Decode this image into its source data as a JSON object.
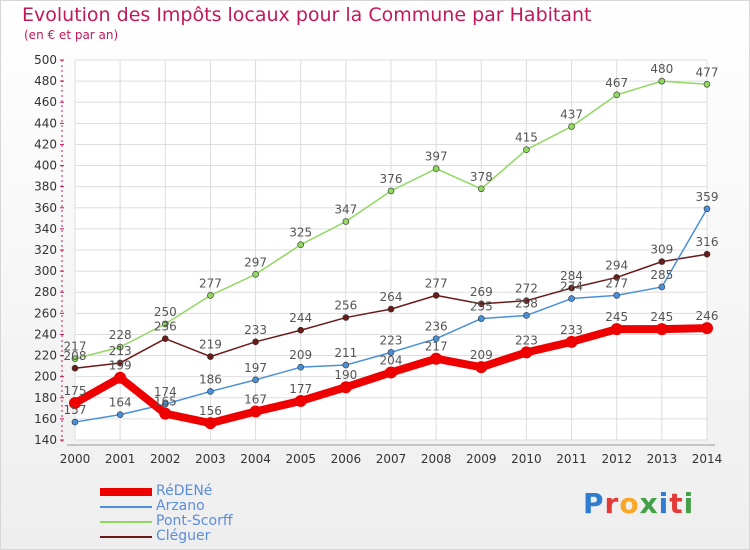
{
  "title": "Evolution des Impôts locaux pour la Commune par Habitant",
  "subtitle": "(en € et par an)",
  "logo": {
    "text": "Proxiti",
    "letter_colors": [
      "#2e7dd1",
      "#e53935",
      "#f9a825",
      "#43a047",
      "#2e7dd1",
      "#e53935",
      "#43a047"
    ]
  },
  "chart_data": {
    "type": "line",
    "x": [
      "2000",
      "2001",
      "2002",
      "2003",
      "2004",
      "2005",
      "2006",
      "2007",
      "2008",
      "2009",
      "2010",
      "2011",
      "2012",
      "2013",
      "2014"
    ],
    "ylim": [
      140,
      500
    ],
    "yticks": [
      140,
      160,
      180,
      200,
      220,
      240,
      260,
      280,
      300,
      320,
      340,
      360,
      380,
      400,
      420,
      440,
      460,
      480,
      500
    ],
    "grid": true,
    "legend_placement": "bottom-left",
    "series": [
      {
        "name": "RéDENé",
        "color": "#ee0000",
        "width": 8,
        "values": [
          175,
          199,
          165,
          156,
          167,
          177,
          190,
          204,
          217,
          209,
          223,
          233,
          245,
          245,
          246
        ]
      },
      {
        "name": "Arzano",
        "color": "#4a90d9",
        "width": 1.5,
        "values": [
          157,
          164,
          174,
          186,
          197,
          209,
          211,
          223,
          236,
          255,
          258,
          274,
          277,
          285,
          359
        ]
      },
      {
        "name": "Pont-Scorff",
        "color": "#90d860",
        "width": 1.5,
        "values": [
          217,
          228,
          250,
          277,
          297,
          325,
          347,
          376,
          397,
          378,
          415,
          437,
          467,
          480,
          477
        ]
      },
      {
        "name": "Cléguer",
        "color": "#6b1a1a",
        "width": 1.5,
        "values": [
          208,
          213,
          236,
          219,
          233,
          244,
          256,
          264,
          277,
          269,
          272,
          284,
          294,
          309,
          316
        ]
      }
    ],
    "data_labels": [
      {
        "series": 0,
        "values": [
          175,
          199,
          165,
          156,
          167,
          177,
          190,
          204,
          217,
          209,
          223,
          233,
          245,
          245,
          246
        ]
      },
      {
        "series": 1,
        "values": [
          157,
          164,
          174,
          186,
          197,
          209,
          211,
          223,
          236,
          255,
          258,
          274,
          277,
          285,
          359
        ]
      },
      {
        "series": 2,
        "values": [
          217,
          228,
          250,
          277,
          297,
          325,
          347,
          376,
          397,
          378,
          415,
          437,
          467,
          480,
          477
        ]
      },
      {
        "series": 3,
        "values": [
          208,
          213,
          236,
          219,
          233,
          244,
          256,
          264,
          277,
          269,
          272,
          284,
          294,
          309,
          316
        ]
      }
    ]
  }
}
